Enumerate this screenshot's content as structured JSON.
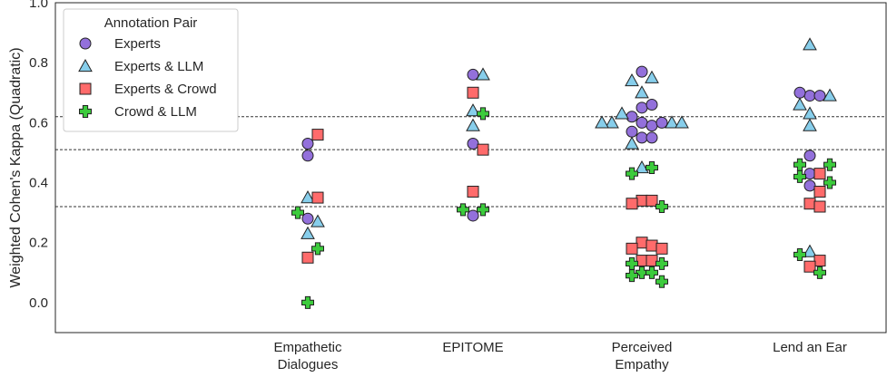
{
  "chart_data": {
    "type": "scatter",
    "ylabel": "Weighted Cohen's Kappa (Quadratic)",
    "xlabel": "",
    "ylim": [
      -0.1,
      1.0
    ],
    "yticks": [
      0.0,
      0.2,
      0.4,
      0.6,
      0.8,
      1.0
    ],
    "ytick_labels": [
      "0.0",
      "0.2",
      "0.4",
      "0.6",
      "0.8",
      "1.0"
    ],
    "grid": false,
    "categories": [
      {
        "line1": "Empathetic",
        "line2": "Dialogues"
      },
      {
        "line1": "EPITOME",
        "line2": ""
      },
      {
        "line1": "Perceived",
        "line2": "Empathy"
      },
      {
        "line1": "Lend an Ear",
        "line2": ""
      }
    ],
    "reference_lines": [
      0.62,
      0.51,
      0.32
    ],
    "legend": {
      "title": "Annotation Pair",
      "placement": "upper-left"
    },
    "series": [
      {
        "name": "Experts",
        "marker": "circle",
        "color": "#9370DB",
        "points": [
          [
            0,
            0.53
          ],
          [
            0,
            0.49
          ],
          [
            0,
            0.28
          ],
          [
            1,
            0.76
          ],
          [
            1,
            0.53
          ],
          [
            1,
            0.29
          ],
          [
            2,
            0.77
          ],
          [
            2,
            0.65
          ],
          [
            2,
            0.66
          ],
          [
            2,
            0.6
          ],
          [
            2,
            0.59
          ],
          [
            2,
            0.62
          ],
          [
            2,
            0.57
          ],
          [
            2,
            0.55
          ],
          [
            2,
            0.55
          ],
          [
            2,
            0.6
          ],
          [
            3,
            0.69
          ],
          [
            3,
            0.69
          ],
          [
            3,
            0.7
          ],
          [
            3,
            0.49
          ],
          [
            3,
            0.43
          ],
          [
            3,
            0.39
          ]
        ]
      },
      {
        "name": "Experts & LLM",
        "marker": "triangle",
        "color": "#87CEEB",
        "points": [
          [
            0,
            0.35
          ],
          [
            0,
            0.27
          ],
          [
            0,
            0.23
          ],
          [
            1,
            0.76
          ],
          [
            1,
            0.64
          ],
          [
            1,
            0.59
          ],
          [
            2,
            0.75
          ],
          [
            2,
            0.74
          ],
          [
            2,
            0.7
          ],
          [
            2,
            0.63
          ],
          [
            2,
            0.6
          ],
          [
            2,
            0.6
          ],
          [
            2,
            0.6
          ],
          [
            2,
            0.6
          ],
          [
            2,
            0.53
          ],
          [
            2,
            0.45
          ],
          [
            3,
            0.86
          ],
          [
            3,
            0.69
          ],
          [
            3,
            0.66
          ],
          [
            3,
            0.63
          ],
          [
            3,
            0.59
          ],
          [
            3,
            0.17
          ]
        ]
      },
      {
        "name": "Experts & Crowd",
        "marker": "square",
        "color": "#FF6B6B",
        "points": [
          [
            0,
            0.56
          ],
          [
            0,
            0.35
          ],
          [
            0,
            0.15
          ],
          [
            1,
            0.7
          ],
          [
            1,
            0.51
          ],
          [
            1,
            0.37
          ],
          [
            2,
            0.34
          ],
          [
            2,
            0.34
          ],
          [
            2,
            0.33
          ],
          [
            2,
            0.2
          ],
          [
            2,
            0.19
          ],
          [
            2,
            0.18
          ],
          [
            2,
            0.18
          ],
          [
            2,
            0.14
          ],
          [
            2,
            0.14
          ],
          [
            3,
            0.43
          ],
          [
            3,
            0.37
          ],
          [
            3,
            0.33
          ],
          [
            3,
            0.32
          ],
          [
            3,
            0.14
          ],
          [
            3,
            0.12
          ]
        ]
      },
      {
        "name": "Crowd & LLM",
        "marker": "plus",
        "color": "#3CCB3C",
        "points": [
          [
            0,
            0.3
          ],
          [
            0,
            0.18
          ],
          [
            0,
            0.0
          ],
          [
            1,
            0.63
          ],
          [
            1,
            0.31
          ],
          [
            1,
            0.31
          ],
          [
            2,
            0.45
          ],
          [
            2,
            0.43
          ],
          [
            2,
            0.32
          ],
          [
            2,
            0.13
          ],
          [
            2,
            0.13
          ],
          [
            2,
            0.1
          ],
          [
            2,
            0.1
          ],
          [
            2,
            0.09
          ],
          [
            2,
            0.07
          ],
          [
            3,
            0.46
          ],
          [
            3,
            0.46
          ],
          [
            3,
            0.42
          ],
          [
            3,
            0.4
          ],
          [
            3,
            0.16
          ],
          [
            3,
            0.1
          ]
        ]
      }
    ]
  }
}
